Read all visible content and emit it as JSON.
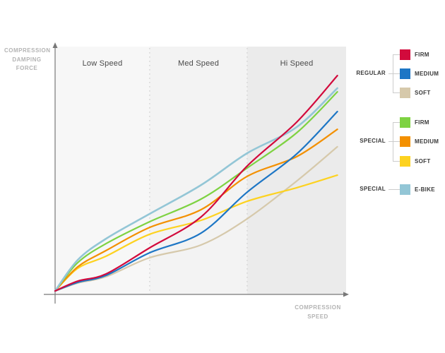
{
  "axes": {
    "y_label_lines": [
      "COMPRESSION",
      "DAMPING",
      "FORCE"
    ],
    "x_label_lines": [
      "COMPRESSION",
      "SPEED"
    ]
  },
  "zones": {
    "labels": [
      "Low Speed",
      "Med Speed",
      "Hi Speed"
    ]
  },
  "legend": {
    "groups": [
      {
        "label": "REGULAR",
        "items": [
          {
            "label": "FIRM",
            "color": "#d20a3c"
          },
          {
            "label": "MEDIUM",
            "color": "#1d76c5"
          },
          {
            "label": "SOFT",
            "color": "#d6c9ab"
          }
        ]
      },
      {
        "label": "SPECIAL",
        "items": [
          {
            "label": "FIRM",
            "color": "#7ed242"
          },
          {
            "label": "MEDIUM",
            "color": "#f39000"
          },
          {
            "label": "SOFT",
            "color": "#fdd220"
          }
        ]
      },
      {
        "label": "SPECIAL",
        "items": [
          {
            "label": "E-BIKE",
            "color": "#93c6d6"
          }
        ]
      }
    ]
  },
  "chart_data": {
    "type": "line",
    "title": "Compression damping force vs compression speed (damper tune curves)",
    "xlabel": "COMPRESSION SPEED",
    "ylabel": "COMPRESSION DAMPING FORCE",
    "x_zones": [
      "Low Speed",
      "Med Speed",
      "Hi Speed"
    ],
    "zone_bounds_pct": [
      0,
      32.5,
      66,
      100
    ],
    "zone_fills": [
      "#f7f7f7",
      "#f3f3f3",
      "#ebebeb"
    ],
    "axis_range": {
      "x": [
        0,
        100
      ],
      "y": [
        0,
        100
      ]
    },
    "grid": false,
    "legend_position": "right",
    "series": [
      {
        "id": "regular-firm",
        "name": "Regular Firm",
        "color": "#d20a3c",
        "stroke_width": 2.2,
        "x": [
          0,
          7.8,
          17.5,
          32.5,
          50.2,
          66,
          83,
          97
        ],
        "y": [
          1.4,
          5.4,
          8.3,
          18.9,
          31.5,
          52.1,
          69.9,
          88.8
        ]
      },
      {
        "id": "regular-medium",
        "name": "Regular Medium",
        "color": "#1d76c5",
        "stroke_width": 2.2,
        "x": [
          0,
          7.8,
          17.5,
          32.5,
          50.2,
          66,
          83,
          97
        ],
        "y": [
          1.4,
          4.9,
          7.7,
          16.9,
          24.9,
          41.5,
          57.0,
          74.2
        ]
      },
      {
        "id": "regular-soft",
        "name": "Regular Soft",
        "color": "#d6c9ab",
        "stroke_width": 2.2,
        "x": [
          0,
          7.8,
          17.5,
          32.5,
          50.2,
          66,
          83,
          97
        ],
        "y": [
          1.4,
          4.6,
          7.2,
          14.9,
          20.1,
          30.7,
          46.0,
          59.9
        ]
      },
      {
        "id": "special-firm",
        "name": "Special Firm",
        "color": "#7ed242",
        "stroke_width": 2.2,
        "x": [
          0,
          7.8,
          17.5,
          32.5,
          50.2,
          66,
          83,
          97
        ],
        "y": [
          1.4,
          12.9,
          20.6,
          29.5,
          38.7,
          51.3,
          65.6,
          82.2
        ]
      },
      {
        "id": "special-medium",
        "name": "Special Medium",
        "color": "#f39000",
        "stroke_width": 2.2,
        "x": [
          0,
          7.8,
          17.5,
          32.5,
          50.2,
          66,
          83,
          97
        ],
        "y": [
          1.4,
          11.2,
          17.8,
          27.2,
          34.4,
          47.9,
          55.9,
          67.0
        ]
      },
      {
        "id": "special-soft",
        "name": "Special Soft",
        "color": "#fdd220",
        "stroke_width": 2.2,
        "x": [
          0,
          7.8,
          17.5,
          32.5,
          50.2,
          66,
          83,
          97
        ],
        "y": [
          1.4,
          10.6,
          15.5,
          24.4,
          30.1,
          37.8,
          43.3,
          48.4
        ]
      },
      {
        "id": "special-ebike",
        "name": "Special E-Bike",
        "color": "#93c6d6",
        "stroke_width": 2.6,
        "x": [
          0,
          7.8,
          17.5,
          32.5,
          50.2,
          66,
          83,
          97
        ],
        "y": [
          1.4,
          14.0,
          22.6,
          32.7,
          44.4,
          57.3,
          67.9,
          83.7
        ]
      }
    ],
    "draw_order": [
      2,
      5,
      4,
      3,
      6,
      1,
      0
    ]
  }
}
